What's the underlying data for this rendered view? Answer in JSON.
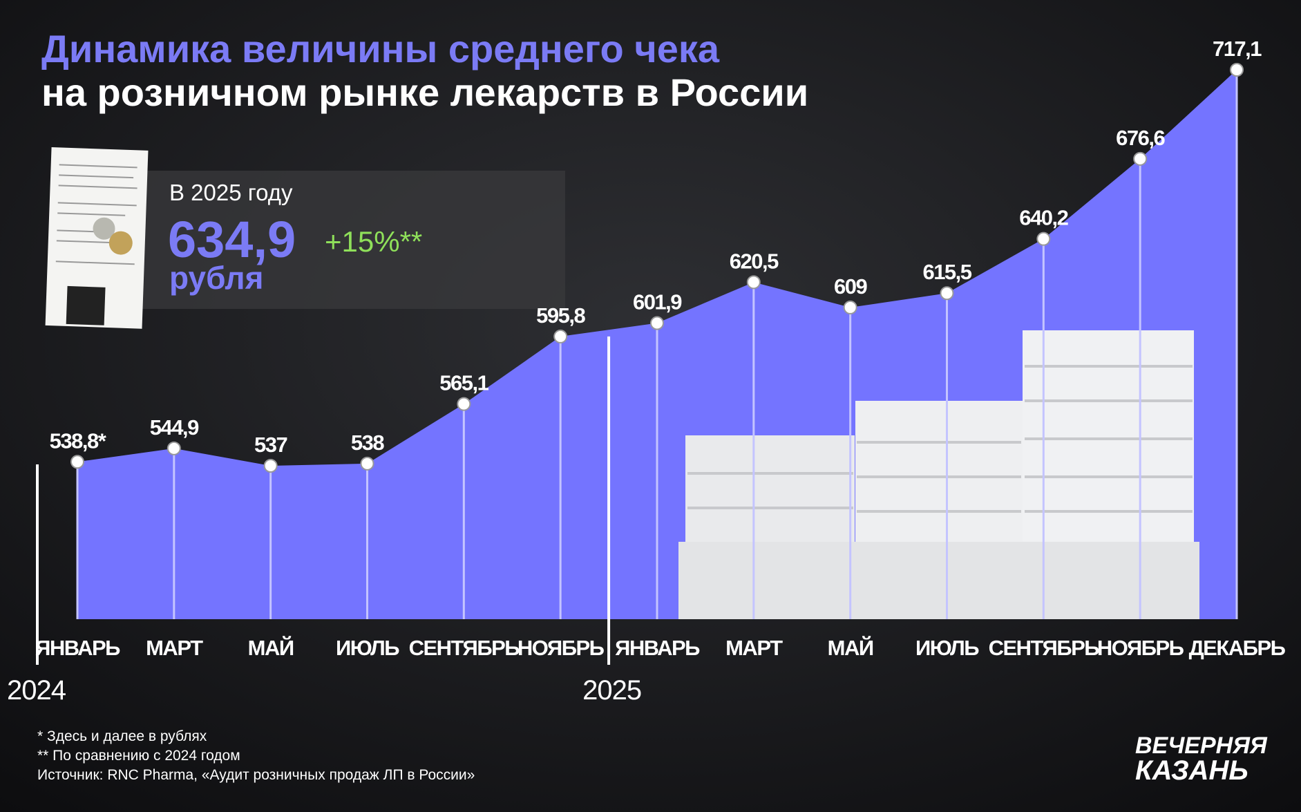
{
  "chart_data": {
    "type": "area",
    "title": "Динамика величины среднего чека",
    "subtitle": "на розничном рынке лекарств в России",
    "categories": [
      "ЯНВАРЬ",
      "МАРТ",
      "МАЙ",
      "ИЮЛЬ",
      "СЕНТЯБРЬ",
      "НОЯБРЬ",
      "ЯНВАРЬ",
      "МАРТ",
      "МАЙ",
      "ИЮЛЬ",
      "СЕНТЯБРЬ",
      "НОЯБРЬ",
      "ДЕКАБРЬ"
    ],
    "year_labels": [
      "2024",
      "2025"
    ],
    "values": [
      538.8,
      544.9,
      537,
      538,
      565.1,
      595.8,
      601.9,
      620.5,
      609,
      615.5,
      640.2,
      676.6,
      717.1
    ],
    "value_labels": [
      "538,8*",
      "544,9",
      "537",
      "538",
      "565,1",
      "595,8",
      "601,9",
      "620,5",
      "609",
      "615,5",
      "640,2",
      "676,6",
      "717,1"
    ],
    "color": "#7474ff"
  },
  "highlight": {
    "label": "В 2025 году",
    "value": "634,9",
    "unit": "рубля",
    "change": "+15%**"
  },
  "footnotes": [
    "* Здесь и далее в рублях",
    "** По сравнению с 2024 годом",
    "Источник: RNC Pharma, «Аудит розничных продаж ЛП в России»"
  ],
  "brand": [
    "ВЕЧЕРНЯЯ",
    "КАЗАНЬ"
  ]
}
